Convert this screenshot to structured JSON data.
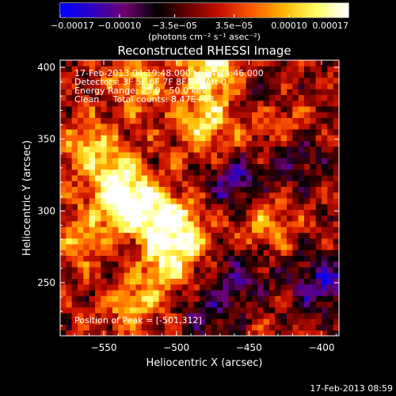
{
  "chart_data": {
    "type": "heatmap",
    "title": "Reconstructed RHESSI Image",
    "xlabel": "Heliocentric X (arcsec)",
    "ylabel": "Heliocentric Y (arcsec)",
    "xlim": [
      -580,
      -388
    ],
    "ylim": [
      213,
      405
    ],
    "x_ticks": [
      -550,
      -500,
      -450,
      -400
    ],
    "x_tick_labels": [
      "−550",
      "−500",
      "−450",
      "−400"
    ],
    "y_ticks": [
      250,
      300,
      350,
      400
    ],
    "y_tick_labels": [
      "250",
      "300",
      "350",
      "400"
    ],
    "colorbar": {
      "range": [
        -0.00017,
        0.00017
      ],
      "ticks": [
        -0.00017,
        -0.0001,
        -3.5e-05,
        3.5e-05,
        0.0001,
        0.00017
      ],
      "tick_labels": [
        "−0.00017",
        "−0.00010",
        "−3.5e−05",
        "3.5e−05",
        "0.00010",
        "0.00017"
      ],
      "units": "(photons cm⁻² s⁻¹ asec⁻²)",
      "colors": [
        "#0000ff",
        "#3000c0",
        "#700070",
        "#000000",
        "#6a0000",
        "#c81000",
        "#ff5a00",
        "#ffb400",
        "#ffff60",
        "#ffffff"
      ]
    },
    "bright_regions": [
      {
        "x": -528,
        "y": 300,
        "level": 0.95
      },
      {
        "x": -540,
        "y": 320,
        "level": 0.8
      },
      {
        "x": -500,
        "y": 290,
        "level": 0.85
      },
      {
        "x": -505,
        "y": 265,
        "level": 0.75
      },
      {
        "x": -475,
        "y": 398,
        "level": 0.9
      },
      {
        "x": -525,
        "y": 390,
        "level": 0.6
      },
      {
        "x": -560,
        "y": 280,
        "level": 0.65
      },
      {
        "x": -480,
        "y": 360,
        "level": 0.7
      },
      {
        "x": -430,
        "y": 360,
        "level": 0.6
      },
      {
        "x": -530,
        "y": 235,
        "level": 0.55
      },
      {
        "x": -560,
        "y": 345,
        "level": 0.55
      },
      {
        "x": -440,
        "y": 290,
        "level": 0.45
      }
    ],
    "dark_regions": [
      {
        "x": -460,
        "y": 320,
        "level": -0.6
      },
      {
        "x": -420,
        "y": 340,
        "level": -0.55
      },
      {
        "x": -455,
        "y": 255,
        "level": -0.5
      },
      {
        "x": -400,
        "y": 250,
        "level": -0.7
      },
      {
        "x": -440,
        "y": 380,
        "level": -0.4
      },
      {
        "x": -480,
        "y": 230,
        "level": -0.45
      },
      {
        "x": -545,
        "y": 275,
        "level": -0.35
      }
    ]
  },
  "annotations": {
    "time_range": "17-Feb-2013 04:19:48.000 to 04:24:46.000",
    "detectors": "Detectors: 3F 5F 6F 7F 8F 9F, Att 0",
    "energy": "Energy Range: 25.0 - 50.0 keV",
    "clean": "Clean     Total counts: 8.47E+03",
    "peak": "Position of Peak = [-501,312]"
  },
  "footer": {
    "timestamp": "17-Feb-2013 08:59"
  }
}
